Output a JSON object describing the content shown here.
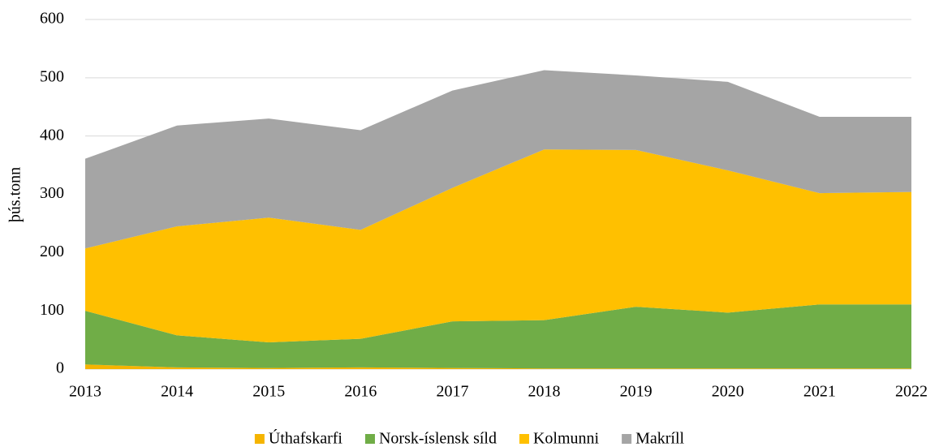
{
  "chart_data": {
    "type": "stacked_area",
    "y_label": "þús.tonn",
    "categories": [
      "2013",
      "2014",
      "2015",
      "2016",
      "2017",
      "2018",
      "2019",
      "2020",
      "2021",
      "2022"
    ],
    "series": [
      {
        "name": "Úthafskarfi",
        "color": "#F5B400",
        "values": [
          8,
          3,
          2,
          3,
          2,
          1,
          1,
          1,
          1,
          1
        ]
      },
      {
        "name": "Norsk-íslensk síld",
        "color": "#70AD47",
        "values": [
          92,
          55,
          44,
          49,
          80,
          83,
          106,
          96,
          110,
          110
        ]
      },
      {
        "name": "Kolmunni",
        "color": "#FFC000",
        "values": [
          107,
          187,
          214,
          187,
          229,
          293,
          269,
          244,
          191,
          193
        ]
      },
      {
        "name": "Makríll",
        "color": "#A5A5A5",
        "values": [
          154,
          173,
          170,
          171,
          167,
          136,
          128,
          152,
          131,
          129
        ]
      }
    ],
    "ylim": [
      0,
      600
    ],
    "yticks": [
      0,
      100,
      200,
      300,
      400,
      500,
      600
    ],
    "grid": true,
    "legend": "bottom"
  }
}
